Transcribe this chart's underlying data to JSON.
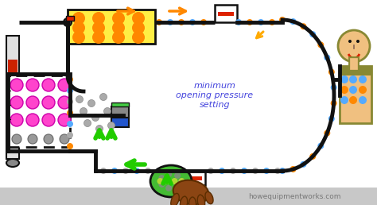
{
  "bg_color": "#ffffff",
  "watermark": "howequipmentworks.com",
  "watermark_color": "#777777",
  "text_label": "minimum\nopening pressure\nsetting",
  "text_color": "#4444dd",
  "fig_width": 4.74,
  "fig_height": 2.58,
  "dpi": 100,
  "tube_lw": 3.5,
  "tube_color": "#111111",
  "orange": "#ff8800",
  "blue_dot": "#55aaff",
  "gray_dot": "#aaaaaa",
  "magenta": "#ff44cc",
  "green_arrow": "#22cc00",
  "red_valve": "#dd2200",
  "yellow_box": "#ffee44",
  "blue_cap": "#2255cc",
  "gray_mech": "#888888",
  "green_mech": "#44cc44",
  "skin": "#f0c080",
  "olive": "#888833",
  "brown": "#8B4513"
}
